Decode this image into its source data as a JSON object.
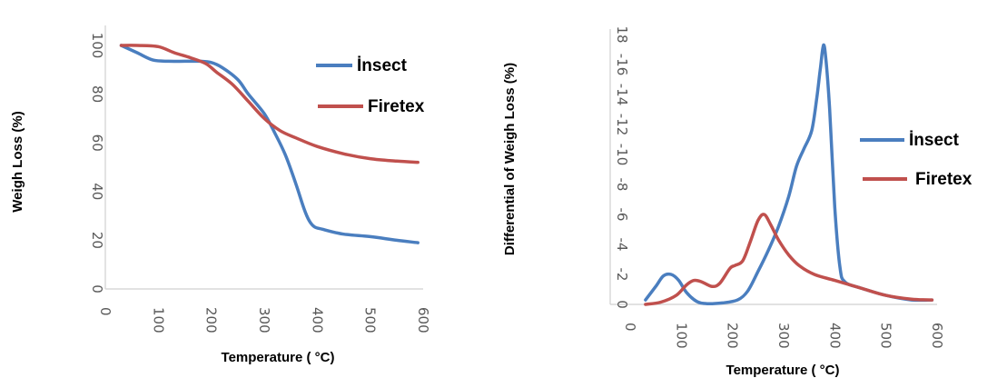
{
  "chart_data": [
    {
      "type": "line",
      "title": "",
      "xlabel": "Temperature ( °C)",
      "ylabel": "Weigh Loss (%)",
      "xlim": [
        0,
        600
      ],
      "ylim": [
        0,
        100
      ],
      "x_ticks": [
        "0",
        "100",
        "200",
        "300",
        "400",
        "500",
        "600"
      ],
      "y_ticks": [
        "0",
        "20",
        "40",
        "60",
        "80",
        "100"
      ],
      "grid": false,
      "legend_position": "top-right",
      "series": [
        {
          "name": "İnsect",
          "color": "#4a7ebf",
          "x": [
            30,
            60,
            90,
            120,
            150,
            180,
            200,
            220,
            250,
            270,
            300,
            320,
            340,
            360,
            375,
            385,
            395,
            410,
            450,
            500,
            550,
            590
          ],
          "y": [
            100,
            97,
            94,
            93.5,
            93.5,
            93.5,
            93,
            91,
            86,
            80,
            72,
            64,
            55,
            43,
            33,
            28,
            25.5,
            24.5,
            22.5,
            21.5,
            20,
            19
          ]
        },
        {
          "name": "Firetex",
          "color": "#c0504d",
          "x": [
            30,
            60,
            100,
            130,
            160,
            190,
            210,
            240,
            270,
            300,
            330,
            360,
            400,
            450,
            500,
            550,
            590
          ],
          "y": [
            100,
            100,
            99.5,
            97,
            95,
            92.5,
            89,
            84,
            77,
            70,
            65,
            62,
            58.5,
            55.5,
            53.5,
            52.5,
            52
          ]
        }
      ]
    },
    {
      "type": "line",
      "title": "",
      "xlabel": "Temperature ( °C)",
      "ylabel": "Differential of Weigh Loss (%)",
      "xlim": [
        0,
        600
      ],
      "ylim": [
        0,
        18
      ],
      "x_ticks": [
        "0",
        "100",
        "200",
        "300",
        "400",
        "500",
        "600"
      ],
      "y_ticks": [
        "0",
        "-2",
        "-4",
        "-6",
        "-8",
        "-10",
        "-12",
        "-14",
        "-16",
        "18"
      ],
      "grid": false,
      "legend_position": "right",
      "series": [
        {
          "name": "İnsect",
          "color": "#4a7ebf",
          "x": [
            30,
            50,
            65,
            80,
            95,
            110,
            130,
            150,
            180,
            210,
            230,
            250,
            270,
            290,
            310,
            325,
            340,
            355,
            365,
            372,
            378,
            383,
            390,
            400,
            410,
            420,
            450,
            500,
            550,
            590
          ],
          "y": [
            0.3,
            1.2,
            1.9,
            2.0,
            1.6,
            0.8,
            0.2,
            0.05,
            0.1,
            0.3,
            0.9,
            2.2,
            3.6,
            5.2,
            7.2,
            9.2,
            10.4,
            11.6,
            13.8,
            15.8,
            17.3,
            16.2,
            13.0,
            6.5,
            2.5,
            1.5,
            1.1,
            0.6,
            0.3,
            0.3
          ]
        },
        {
          "name": "Firetex",
          "color": "#c0504d",
          "x": [
            30,
            60,
            90,
            110,
            125,
            140,
            160,
            175,
            195,
            205,
            220,
            235,
            250,
            262,
            275,
            290,
            310,
            330,
            360,
            400,
            450,
            500,
            550,
            590
          ],
          "y": [
            0,
            0.15,
            0.6,
            1.3,
            1.6,
            1.5,
            1.2,
            1.4,
            2.4,
            2.6,
            2.9,
            4.2,
            5.6,
            6.0,
            5.3,
            4.3,
            3.3,
            2.6,
            2.0,
            1.6,
            1.1,
            0.6,
            0.35,
            0.3
          ]
        }
      ]
    }
  ]
}
